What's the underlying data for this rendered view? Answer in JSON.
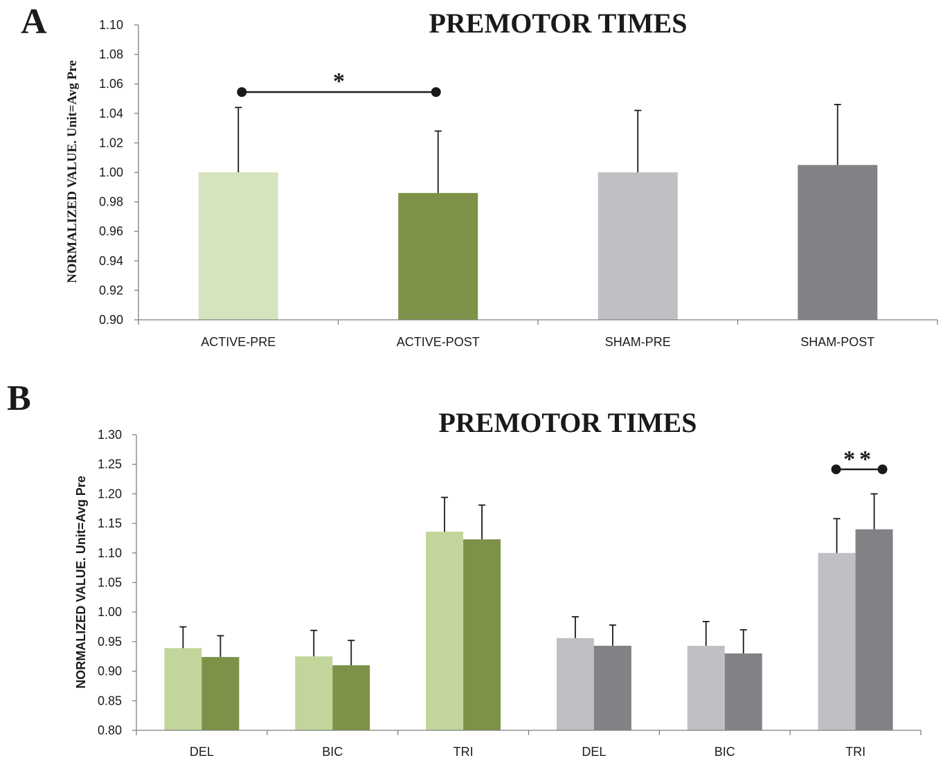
{
  "panel_a_letter": "A",
  "panel_b_letter": "B",
  "colors": {
    "active_pre": "#d6e4bd",
    "active_post": "#7e9148",
    "sham_pre": "#bfc0c4",
    "sham_post": "#818285",
    "active_pre_b": "#c2d59b",
    "axis": "#7f7f7f"
  },
  "chart_data": [
    {
      "id": "A",
      "type": "bar",
      "title": "PREMOTOR TIMES",
      "xlabel": "",
      "ylabel": "NORMALIZED VALUE. Unit=Avg Pre",
      "ylim": [
        0.9,
        1.1
      ],
      "yticks": [
        "0.90",
        "0.92",
        "0.94",
        "0.96",
        "0.98",
        "1.00",
        "1.02",
        "1.04",
        "1.06",
        "1.08",
        "1.10"
      ],
      "categories": [
        "ACTIVE-PRE",
        "ACTIVE-POST",
        "SHAM-PRE",
        "SHAM-POST"
      ],
      "values": [
        1.0,
        0.986,
        1.0,
        1.005
      ],
      "errors": [
        0.044,
        0.042,
        0.042,
        0.041
      ],
      "grid": false,
      "significance": [
        {
          "from": "ACTIVE-PRE",
          "to": "ACTIVE-POST",
          "label": "*"
        }
      ]
    },
    {
      "id": "B",
      "type": "bar",
      "title": "PREMOTOR TIMES",
      "xlabel": "",
      "ylabel": "NORMALIZED VALUE. Unit=Avg Pre",
      "ylim": [
        0.8,
        1.3
      ],
      "yticks": [
        "0.80",
        "0.85",
        "0.90",
        "0.95",
        "1.00",
        "1.05",
        "1.10",
        "1.15",
        "1.20",
        "1.25",
        "1.30"
      ],
      "categories": [
        "DEL",
        "BIC",
        "TRI",
        "DEL",
        "BIC",
        "TRI"
      ],
      "groups": [
        {
          "values": [
            0.939,
            0.924
          ],
          "errors": [
            0.036,
            0.036
          ]
        },
        {
          "values": [
            0.925,
            0.91
          ],
          "errors": [
            0.044,
            0.042
          ]
        },
        {
          "values": [
            1.136,
            1.123
          ],
          "errors": [
            0.058,
            0.058
          ]
        },
        {
          "values": [
            0.956,
            0.943
          ],
          "errors": [
            0.036,
            0.035
          ]
        },
        {
          "values": [
            0.943,
            0.93
          ],
          "errors": [
            0.041,
            0.04
          ]
        },
        {
          "values": [
            1.1,
            1.14
          ],
          "errors": [
            0.058,
            0.06
          ]
        }
      ],
      "grid": false,
      "significance": [
        {
          "group": 5,
          "label": "**"
        }
      ]
    }
  ]
}
